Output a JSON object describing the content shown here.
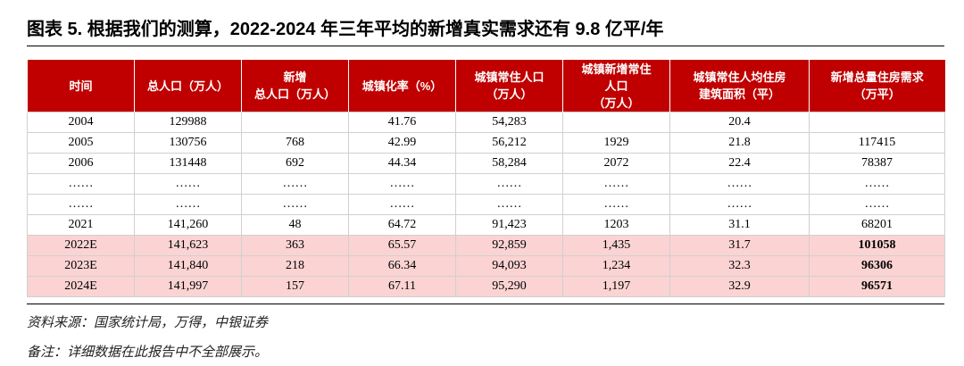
{
  "header": {
    "title": "图表 5. 根据我们的测算，2022-2024 年三年平均的新增真实需求还有 9.8 亿平/年"
  },
  "table": {
    "columns": [
      [
        "时间"
      ],
      [
        "总人口（万人）"
      ],
      [
        "新增",
        "总人口（万人）"
      ],
      [
        "城镇化率（%）"
      ],
      [
        "城镇常住人口",
        "（万人）"
      ],
      [
        "城镇新增常住",
        "人口",
        "（万人）"
      ],
      [
        "城镇常住人均住房",
        "建筑面积（平）"
      ],
      [
        "新增总量住房需求",
        "（万平）"
      ]
    ],
    "rows": [
      {
        "cells": [
          "2004",
          "129988",
          null,
          "41.76",
          "54,283",
          null,
          "20.4",
          null
        ]
      },
      {
        "cells": [
          "2005",
          "130756",
          "768",
          "42.99",
          "56,212",
          "1929",
          "21.8",
          "117415"
        ]
      },
      {
        "cells": [
          "2006",
          "131448",
          "692",
          "44.34",
          "58,284",
          "2072",
          "22.4",
          "78387"
        ]
      },
      {
        "cells": [
          "……",
          "……",
          "……",
          "……",
          "……",
          "……",
          "……",
          "……"
        ]
      },
      {
        "cells": [
          "……",
          "……",
          "……",
          "……",
          "……",
          "……",
          "……",
          "……"
        ]
      },
      {
        "cells": [
          "2021",
          "141,260",
          "48",
          "64.72",
          "91,423",
          "1203",
          "31.1",
          "68201"
        ]
      },
      {
        "cells": [
          "2022E",
          "141,623",
          "363",
          "65.57",
          "92,859",
          "1,435",
          "31.7",
          "101058"
        ],
        "estimate": true
      },
      {
        "cells": [
          "2023E",
          "141,840",
          "218",
          "66.34",
          "94,093",
          "1,234",
          "32.3",
          "96306"
        ],
        "estimate": true
      },
      {
        "cells": [
          "2024E",
          "141,997",
          "157",
          "67.11",
          "95,290",
          "1,197",
          "32.9",
          "96571"
        ],
        "estimate": true
      }
    ]
  },
  "notes": [
    "资料来源：国家统计局，万得，中银证券",
    "备注：详细数据在此报告中不全部展示。"
  ]
}
